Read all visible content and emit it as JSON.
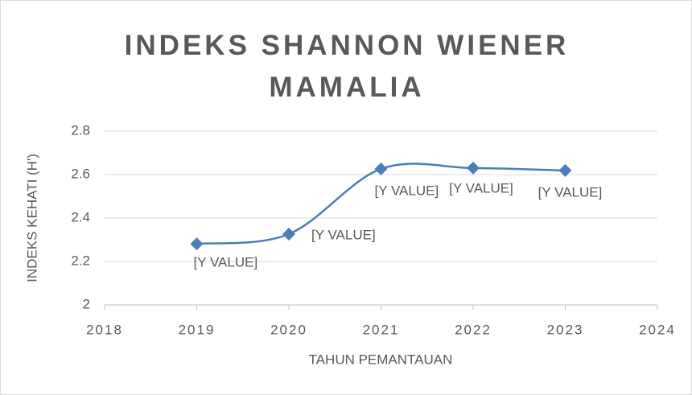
{
  "chart_data": {
    "type": "line",
    "title": "INDEKS SHANNON WIENER MAMALIA",
    "x": [
      2019,
      2020,
      2021,
      2022,
      2023
    ],
    "series": [
      {
        "name": "Indeks Shannon Wiener",
        "color": "#4a7ebb",
        "values": [
          2.281,
          2.326,
          2.626,
          2.63,
          2.619
        ]
      }
    ],
    "data_labels": [
      "[Y VALUE]",
      "[Y VALUE]",
      "[Y VALUE]",
      "[Y VALUE]",
      "[Y VALUE]"
    ],
    "xlabel": "TAHUN PEMANTAUAN",
    "ylabel": "INDEKS KEHATI (H')",
    "xlim": [
      2018,
      2024
    ],
    "xticks": [
      2018,
      2019,
      2020,
      2021,
      2022,
      2023,
      2024
    ],
    "ylim": [
      2,
      2.8
    ],
    "yticks": [
      2,
      2.2,
      2.4,
      2.6,
      2.8
    ],
    "grid": true,
    "smooth": true
  }
}
